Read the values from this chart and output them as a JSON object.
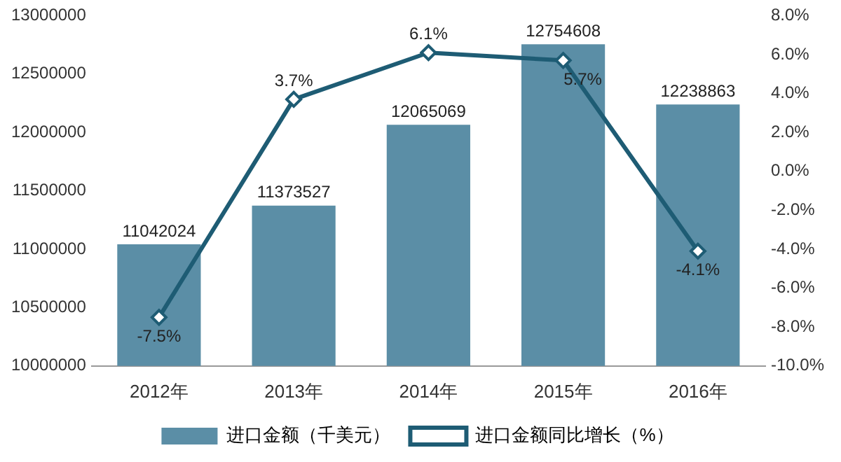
{
  "chart_data": {
    "type": "bar",
    "categories": [
      "2012年",
      "2013年",
      "2014年",
      "2015年",
      "2016年"
    ],
    "series": [
      {
        "name": "进口金额（千美元）",
        "color": "#5b8ea6",
        "values": [
          11042024,
          11373527,
          12065069,
          12754608,
          12238863
        ],
        "value_labels": [
          "11042024",
          "11373527",
          "12065069",
          "12754608",
          "12238863"
        ]
      },
      {
        "name": "进口金额同比增长（%）",
        "type": "line",
        "axis": "y2",
        "color": "#1e5c74",
        "values": [
          -7.5,
          3.7,
          6.1,
          5.7,
          -4.1
        ],
        "value_labels": [
          "-7.5%",
          "3.7%",
          "6.1%",
          "5.7%",
          "-4.1%"
        ]
      }
    ],
    "ylim": [
      10000000,
      13000000
    ],
    "yticks": [
      10000000,
      10500000,
      11000000,
      11500000,
      12000000,
      12500000,
      13000000
    ],
    "y2lim": [
      -10,
      8
    ],
    "y2ticks": [
      {
        "value": -10,
        "label": "-10.0%"
      },
      {
        "value": -8,
        "label": "-8.0%"
      },
      {
        "value": -6,
        "label": "-6.0%"
      },
      {
        "value": -4,
        "label": "-4.0%"
      },
      {
        "value": -2,
        "label": "-2.0%"
      },
      {
        "value": 0,
        "label": "0.0%"
      },
      {
        "value": 2,
        "label": "2.0%"
      },
      {
        "value": 4,
        "label": "4.0%"
      },
      {
        "value": 6,
        "label": "6.0%"
      },
      {
        "value": 8,
        "label": "8.0%"
      }
    ],
    "legend": "bottom",
    "marker": "diamond",
    "grid": false
  }
}
